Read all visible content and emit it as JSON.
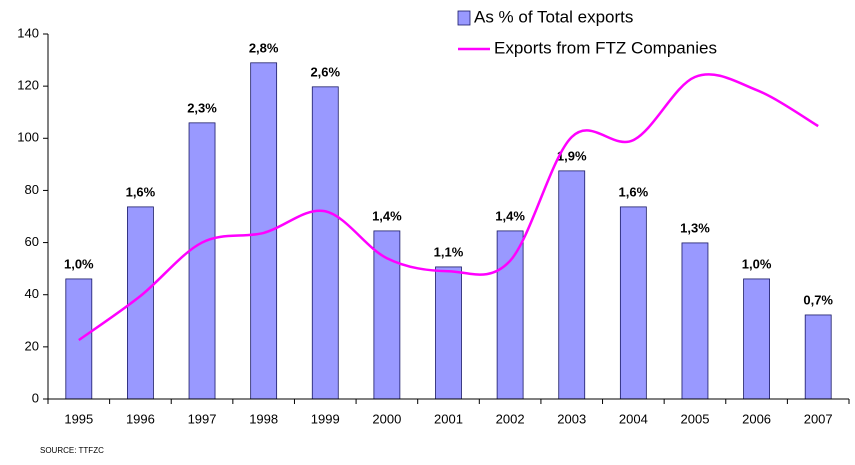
{
  "chart_data": {
    "type": "bar_line",
    "categories": [
      "1995",
      "1996",
      "1997",
      "1998",
      "1999",
      "2000",
      "2001",
      "2002",
      "2003",
      "2004",
      "2005",
      "2006",
      "2007"
    ],
    "series": [
      {
        "name": "As % of Total exports",
        "type": "bar",
        "color": "#9999ff",
        "axis": "y2",
        "values": [
          1.0,
          1.6,
          2.3,
          2.8,
          2.6,
          1.4,
          1.1,
          1.4,
          1.9,
          1.6,
          1.3,
          1.0,
          0.7
        ],
        "value_labels": [
          "1,0%",
          "1,6%",
          "2,3%",
          "2,8%",
          "2,6%",
          "1,4%",
          "1,1%",
          "1,4%",
          "1,9%",
          "1,6%",
          "1,3%",
          "1,0%",
          "0,7%"
        ]
      },
      {
        "name": "Exports from FTZ Companies",
        "type": "line",
        "color": "#ff00ff",
        "values": [
          22.6,
          39.5,
          60,
          63.7,
          72,
          54,
          49,
          53,
          100.5,
          99.3,
          123.5,
          118.5,
          104.7
        ]
      }
    ],
    "ylim": [
      0,
      140
    ],
    "yticks": [
      0,
      20,
      40,
      60,
      80,
      100,
      120,
      140
    ],
    "y2lim": [
      0,
      3.04
    ],
    "grid": false,
    "legend": "top-right",
    "source": "SOURCE: TTFZC"
  }
}
